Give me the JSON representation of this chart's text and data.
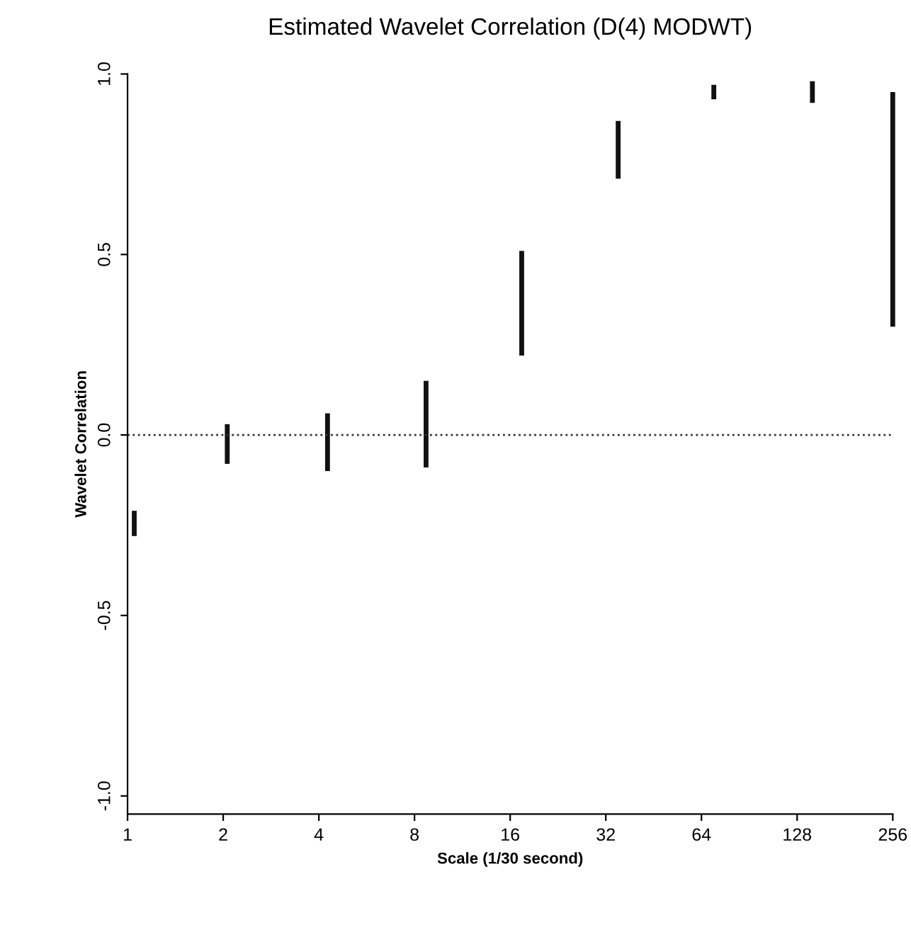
{
  "chart_data": {
    "type": "bar",
    "title": "Estimated Wavelet Correlation (D(4) MODWT)",
    "xlabel": "Scale (1/30 second)",
    "ylabel": "Wavelet Correlation",
    "x": [
      1.05,
      2.06,
      4.26,
      8.7,
      17.4,
      35,
      70,
      143,
      256
    ],
    "base": [
      -0.28,
      -0.08,
      -0.1,
      -0.09,
      0.22,
      0.71,
      0.93,
      0.92,
      0.3
    ],
    "values": [
      0.07,
      0.11,
      0.16,
      0.24,
      0.29,
      0.16,
      0.04,
      0.06,
      0.65
    ],
    "color": "#111111",
    "log": "x",
    "xlim": [
      1,
      256
    ],
    "xticks": [
      1,
      2,
      4,
      8,
      16,
      32,
      64,
      128,
      256
    ],
    "ylim": [
      -1.05,
      1.0
    ],
    "yticks": [
      {
        "value": -1.0,
        "label": "-1.0"
      },
      {
        "value": -0.5,
        "label": "-0.5"
      },
      {
        "value": 0.0,
        "label": "0.0"
      },
      {
        "value": 0.5,
        "label": "0.5"
      },
      {
        "value": 1.0,
        "label": "1.0"
      }
    ],
    "ref_lines": [
      {
        "axis": "y",
        "value": 0,
        "line_style": "dotted",
        "color": "#333333"
      }
    ],
    "grid": false
  }
}
